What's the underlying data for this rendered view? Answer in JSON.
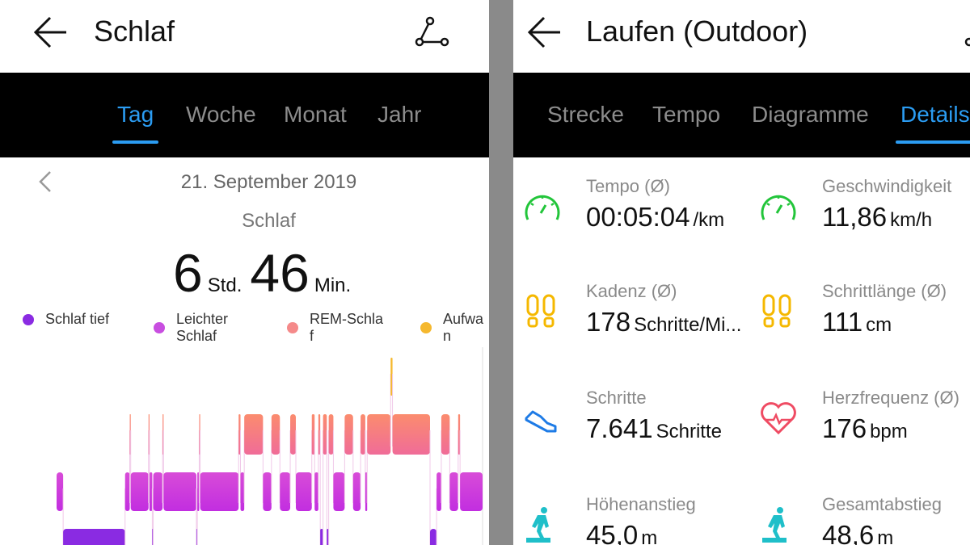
{
  "left": {
    "title": "Schlaf",
    "tabs": [
      "Tag",
      "Woche",
      "Monat",
      "Jahr"
    ],
    "active_tab": "Tag",
    "date": "21. September 2019",
    "subtitle": "Schlaf",
    "duration": {
      "hours": "6",
      "hours_unit": "Std.",
      "minutes": "46",
      "minutes_unit": "Min."
    },
    "legend": [
      {
        "line1": "Schlaf tief",
        "line2": "",
        "color": "#8a2be2"
      },
      {
        "line1": "Leichter",
        "line2": "Schlaf",
        "color": "#c84ee0"
      },
      {
        "line1": "REM-Schla",
        "line2": "f",
        "color": "#f58a8a"
      },
      {
        "line1": "Aufwa",
        "line2": "n",
        "color": "#f5b82e"
      }
    ]
  },
  "chart_data": {
    "type": "hypnogram",
    "stages": [
      "Aufwachen",
      "REM",
      "Leicht",
      "Tief"
    ],
    "segments": [
      [
        "L",
        7
      ],
      [
        "D",
        66
      ],
      [
        "L",
        5
      ],
      [
        "R",
        1
      ],
      [
        "L",
        19
      ],
      [
        "R",
        1
      ],
      [
        "L",
        3
      ],
      [
        "D",
        1
      ],
      [
        "L",
        10
      ],
      [
        "R",
        1
      ],
      [
        "L",
        35
      ],
      [
        "D",
        1
      ],
      [
        "L",
        2
      ],
      [
        "R",
        1
      ],
      [
        "L",
        41
      ],
      [
        "R",
        2
      ],
      [
        "L",
        4
      ],
      [
        "R",
        20
      ],
      [
        "L",
        9
      ],
      [
        "R",
        9
      ],
      [
        "L",
        11
      ],
      [
        "R",
        6
      ],
      [
        "L",
        17
      ],
      [
        "R",
        3
      ],
      [
        "L",
        4
      ],
      [
        "R",
        2
      ],
      [
        "D",
        3
      ],
      [
        "R",
        4
      ],
      [
        "D",
        2
      ],
      [
        "R",
        5
      ],
      [
        "L",
        12
      ],
      [
        "R",
        9
      ],
      [
        "L",
        8
      ],
      [
        "R",
        5
      ],
      [
        "L",
        2
      ],
      [
        "R",
        25
      ],
      [
        "W",
        2
      ],
      [
        "R",
        40
      ],
      [
        "D",
        7
      ],
      [
        "L",
        5
      ],
      [
        "R",
        9
      ],
      [
        "L",
        9
      ],
      [
        "R",
        2
      ],
      [
        "L",
        24
      ]
    ],
    "colors": {
      "W": "#f5b82e",
      "R": "#f58a80",
      "L": "#cc40dc",
      "D": "#8a2be2"
    }
  },
  "right": {
    "title": "Laufen (Outdoor)",
    "tabs": [
      "Strecke",
      "Tempo",
      "Diagramme",
      "Details"
    ],
    "active_tab": "Details",
    "stats": [
      {
        "label": "Tempo (Ø)",
        "value": "00:05:04",
        "unit": "/km",
        "icon": "speedometer-icon",
        "color": "#22c53a"
      },
      {
        "label": "Geschwindigkeit",
        "value": "11,86",
        "unit": "km/h",
        "icon": "speedometer-icon",
        "color": "#22c53a"
      },
      {
        "label": "Kadenz (Ø)",
        "value": "178",
        "unit": "Schritte/Mi...",
        "icon": "footprints-icon",
        "color": "#f5b800"
      },
      {
        "label": "Schrittlänge (Ø)",
        "value": "111",
        "unit": "cm",
        "icon": "footprints-icon",
        "color": "#f5b800"
      },
      {
        "label": "Schritte",
        "value": "7.641",
        "unit": "Schritte",
        "icon": "shoe-icon",
        "color": "#1e7be6"
      },
      {
        "label": "Herzfrequenz (Ø)",
        "value": "176",
        "unit": "bpm",
        "icon": "heart-rate-icon",
        "color": "#ef4b63"
      },
      {
        "label": "Höhenanstieg",
        "value": "45,0",
        "unit": "m",
        "icon": "hiker-icon",
        "color": "#1fbfc9"
      },
      {
        "label": "Gesamtabstieg",
        "value": "48,6",
        "unit": "m",
        "icon": "hiker-icon",
        "color": "#1fbfc9"
      }
    ]
  }
}
